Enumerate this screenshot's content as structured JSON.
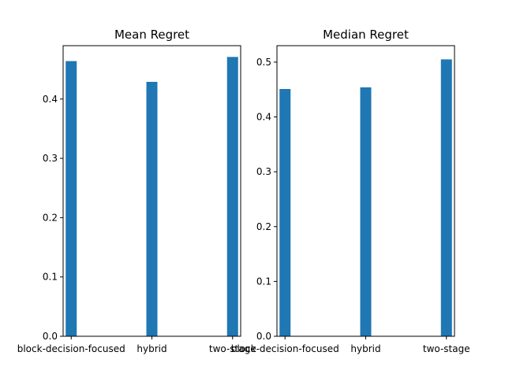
{
  "figure": {
    "background": "#ffffff",
    "bar_color": "#1f77b4"
  },
  "chart_data": [
    {
      "type": "bar",
      "title": "Mean Regret",
      "xlabel": "",
      "ylabel": "",
      "categories": [
        "block-decision-focused",
        "hybrid",
        "two-stage"
      ],
      "values": [
        0.464,
        0.429,
        0.471
      ],
      "ylim": [
        0,
        0.49
      ],
      "yticks": [
        0.0,
        0.1,
        0.2,
        0.3,
        0.4
      ],
      "ytick_labels": [
        "0.0",
        "0.1",
        "0.2",
        "0.3",
        "0.4"
      ],
      "grid": false,
      "legend": "none"
    },
    {
      "type": "bar",
      "title": "Median Regret",
      "xlabel": "",
      "ylabel": "",
      "categories": [
        "block-decision-focused",
        "hybrid",
        "two-stage"
      ],
      "values": [
        0.451,
        0.454,
        0.505
      ],
      "ylim": [
        0,
        0.53
      ],
      "yticks": [
        0.0,
        0.1,
        0.2,
        0.3,
        0.4,
        0.5
      ],
      "ytick_labels": [
        "0.0",
        "0.1",
        "0.2",
        "0.3",
        "0.4",
        "0.5"
      ],
      "grid": false,
      "legend": "none"
    }
  ]
}
